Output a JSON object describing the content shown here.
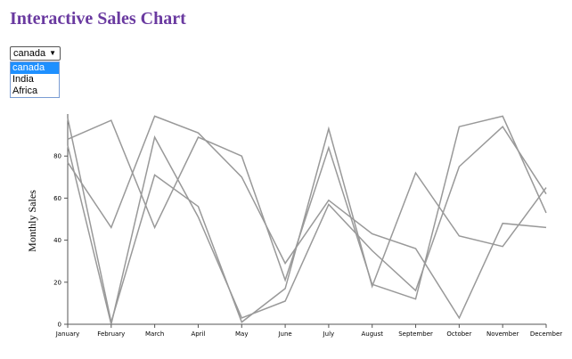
{
  "page": {
    "title": "Interactive Sales Chart"
  },
  "select": {
    "value": "canada",
    "options": [
      "canada",
      "India",
      "Africa"
    ]
  },
  "chart_data": {
    "type": "line",
    "title": "",
    "xlabel": "",
    "ylabel": "Monthly Sales",
    "categories": [
      "January",
      "February",
      "March",
      "April",
      "May",
      "June",
      "July",
      "August",
      "September",
      "October",
      "November",
      "December"
    ],
    "ylim": [
      0,
      100
    ],
    "yticks": [
      0,
      20,
      40,
      60,
      80
    ],
    "grid": false,
    "series_color": "#999999",
    "series": [
      {
        "values": [
          98,
          1,
          71,
          56,
          1,
          17,
          93,
          18,
          72,
          42,
          37,
          65
        ]
      },
      {
        "values": [
          88,
          97,
          46,
          89,
          80,
          21,
          84,
          19,
          12,
          94,
          99,
          53
        ]
      },
      {
        "values": [
          85,
          0,
          89,
          51,
          3,
          11,
          57,
          35,
          16,
          75,
          94,
          62
        ]
      },
      {
        "values": [
          77,
          46,
          99,
          91,
          70,
          29,
          59,
          43,
          36,
          3,
          48,
          46
        ]
      }
    ]
  }
}
